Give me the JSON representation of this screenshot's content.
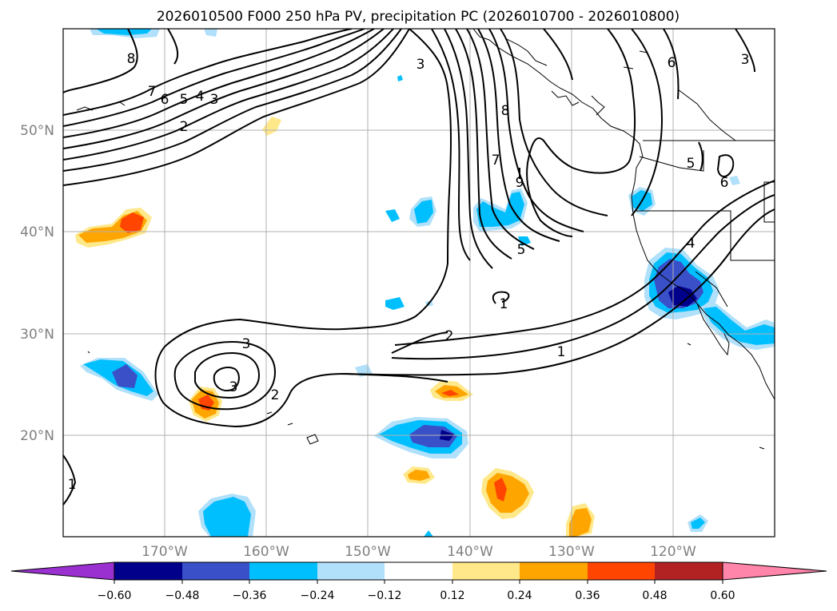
{
  "title": "2026010500 F000 250 hPa PV, precipitation PC (2026010700 - 2026010800)",
  "map": {
    "lat_labels": [
      "50°N",
      "40°N",
      "30°N",
      "20°N"
    ],
    "lon_labels": [
      "170°W",
      "160°W",
      "150°W",
      "140°W",
      "130°W",
      "120°W"
    ],
    "grid": true
  },
  "pv_contour_labels": [
    "8",
    "7",
    "6",
    "5",
    "4",
    "3",
    "2",
    "3",
    "8",
    "7",
    "9",
    "6",
    "5",
    "6",
    "3",
    "5",
    "4",
    "1",
    "2",
    "1",
    "3",
    "2",
    "3",
    "1"
  ],
  "colorbar": {
    "tick_labels": [
      "−0.60",
      "−0.48",
      "−0.36",
      "−0.24",
      "−0.12",
      "0.12",
      "0.24",
      "0.36",
      "0.48",
      "0.60"
    ],
    "colors": [
      "#9b30d0",
      "#00008b",
      "#3a50c8",
      "#00bfff",
      "#b0e0fa",
      "#ffffff",
      "#ffe88a",
      "#ffa500",
      "#ff4500",
      "#b22222",
      "#ff85aa"
    ]
  }
}
